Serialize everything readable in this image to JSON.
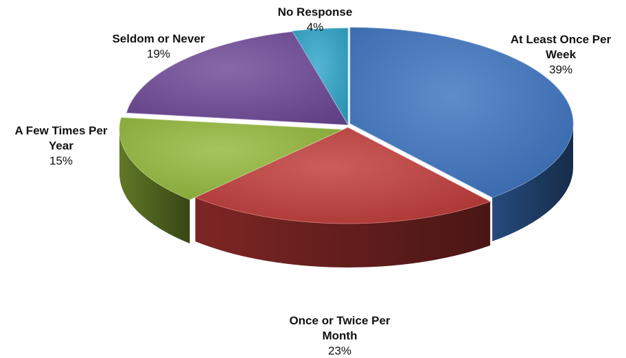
{
  "chart_data": {
    "type": "pie",
    "title": "",
    "style": "3d-exploded-perspective",
    "slices": [
      {
        "label_lines": [
          "At Least Once Per",
          "Week"
        ],
        "value": 39,
        "value_label": "39%",
        "color": "#3b73c0"
      },
      {
        "label_lines": [
          "Once or Twice Per",
          "Month"
        ],
        "value": 23,
        "value_label": "23%",
        "color": "#c03a38"
      },
      {
        "label_lines": [
          "A Few Times Per",
          "Year"
        ],
        "value": 15,
        "value_label": "15%",
        "color": "#93b83a"
      },
      {
        "label_lines": [
          "Seldom or Never"
        ],
        "value": 19,
        "value_label": "19%",
        "color": "#6d4896"
      },
      {
        "label_lines": [
          "No Response"
        ],
        "value": 4,
        "value_label": "4%",
        "color": "#2ea5c9"
      }
    ]
  }
}
